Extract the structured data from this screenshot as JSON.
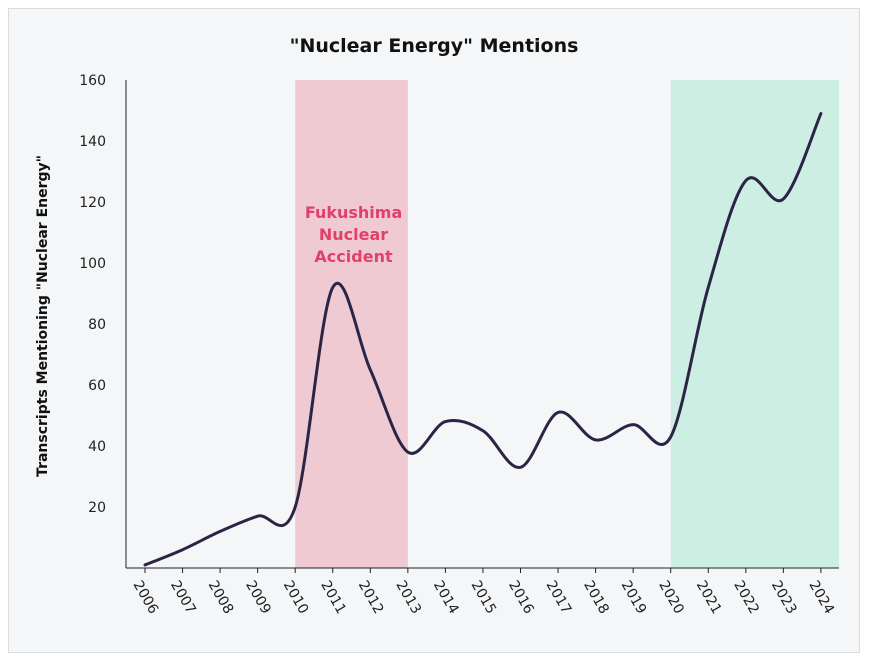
{
  "chart_data": {
    "type": "line",
    "title": "\"Nuclear Energy\" Mentions",
    "xlabel": "",
    "ylabel": "Transcripts Mentioning \"Nuclear Energy\"",
    "x": [
      "2006",
      "2007",
      "2008",
      "2009",
      "2010",
      "2011",
      "2012",
      "2013",
      "2014",
      "2015",
      "2016",
      "2017",
      "2018",
      "2019",
      "2020",
      "2021",
      "2022",
      "2023",
      "2024"
    ],
    "ylim": [
      0,
      160
    ],
    "yticks": [
      20,
      40,
      60,
      80,
      100,
      120,
      140,
      160
    ],
    "series": [
      {
        "values": [
          1,
          6,
          12,
          17,
          20,
          92,
          65,
          38,
          48,
          45,
          33,
          51,
          42,
          47,
          43,
          92,
          127,
          121,
          149
        ],
        "color": "#2b2545"
      }
    ],
    "highlights": [
      {
        "from": "2010",
        "to": "2013",
        "color": "#f0cad3",
        "label": [
          "Fukushima",
          "Nuclear",
          "Accident"
        ],
        "label_color": "#e0406a"
      },
      {
        "from": "2020",
        "to": "2024",
        "color": "#cdeee2",
        "label": [],
        "label_color": ""
      }
    ],
    "grid": false,
    "legend": "none"
  }
}
